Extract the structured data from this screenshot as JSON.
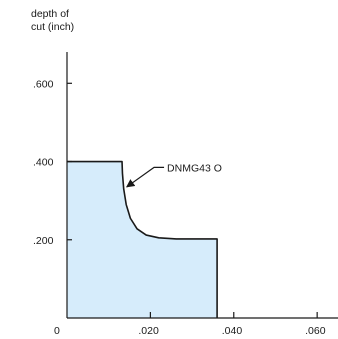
{
  "chart_data": {
    "type": "area",
    "ylabel": [
      "depth of",
      "cut (inch)"
    ],
    "xlabel": "",
    "xlim": [
      0,
      0.065
    ],
    "ylim": [
      0,
      0.68
    ],
    "x_ticks": [
      {
        "value": 0,
        "label": "0"
      },
      {
        "value": 0.02,
        "label": ".020"
      },
      {
        "value": 0.04,
        "label": ".040"
      },
      {
        "value": 0.06,
        "label": ".060"
      }
    ],
    "y_ticks": [
      {
        "value": 0.2,
        "label": ".200"
      },
      {
        "value": 0.4,
        "label": ".400"
      },
      {
        "value": 0.6,
        "label": ".600"
      }
    ],
    "series": [
      {
        "name": "DNMG43 O",
        "x": [
          0,
          0.0132,
          0.0133,
          0.0136,
          0.0142,
          0.0152,
          0.0168,
          0.019,
          0.022,
          0.0262,
          0.036,
          0.036
        ],
        "y": [
          0.4,
          0.4,
          0.37,
          0.33,
          0.29,
          0.255,
          0.228,
          0.212,
          0.205,
          0.202,
          0.202,
          0
        ],
        "fill": "#d6ecfb",
        "stroke": "#1a1a1a"
      }
    ],
    "annotation": {
      "text": "DNMG43 O",
      "point": {
        "x": 0.0136,
        "y": 0.33
      },
      "text_at": {
        "x": 0.024,
        "y": 0.385
      }
    }
  }
}
